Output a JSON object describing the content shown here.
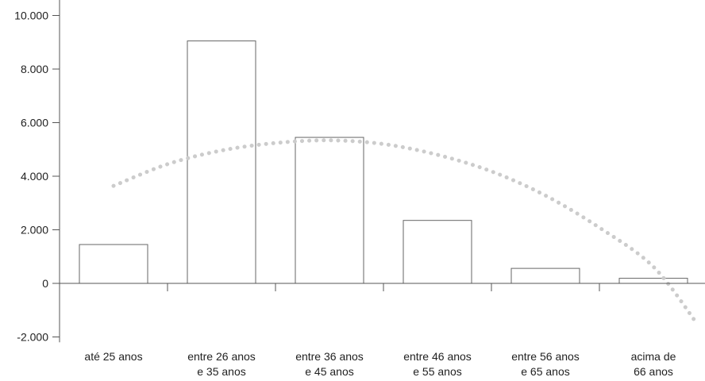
{
  "chart_data": {
    "type": "bar",
    "categories": [
      [
        "até 25 anos"
      ],
      [
        "entre 26 anos",
        "e 35 anos"
      ],
      [
        "entre 36 anos",
        "e 45 anos"
      ],
      [
        "entre 46 anos",
        "e 55 anos"
      ],
      [
        "entre 56 anos",
        "e 65 anos"
      ],
      [
        "acima de",
        "66 anos"
      ]
    ],
    "values": [
      1450,
      9050,
      5450,
      2350,
      560,
      190
    ],
    "trendline": {
      "style": "dotted",
      "color": "#cccccc",
      "points": [
        [
          0,
          3640
        ],
        [
          0.5,
          4450
        ],
        [
          1,
          4960
        ],
        [
          1.5,
          5240
        ],
        [
          2,
          5340
        ],
        [
          2.5,
          5200
        ],
        [
          3,
          4800
        ],
        [
          3.5,
          4180
        ],
        [
          4,
          3280
        ],
        [
          4.5,
          2080
        ],
        [
          5,
          620
        ],
        [
          5.4,
          -1480
        ]
      ]
    },
    "yticks": [
      "10.000",
      "8.000",
      "6.000",
      "4.000",
      "2.000",
      "0",
      "-2.000"
    ],
    "ytick_values": [
      10000,
      8000,
      6000,
      4000,
      2000,
      0,
      -2000
    ],
    "ylim": [
      -2200,
      10500
    ],
    "bar_fill": "#ffffff",
    "bar_stroke": "#666666",
    "axis_color": "#555555",
    "grid": false,
    "legend": false
  }
}
